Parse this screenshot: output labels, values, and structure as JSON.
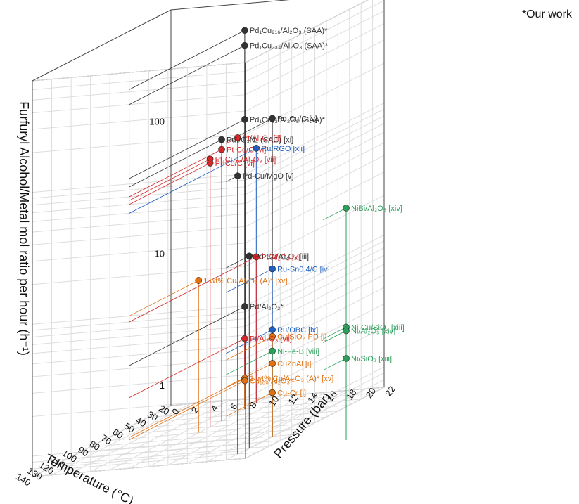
{
  "note": "*Our work",
  "chart_data": {
    "type": "scatter3d",
    "xlabel": "Temperature (°C)",
    "ylabel": "Pressure (bar)",
    "zlabel": "Furfuryl Alcohol/Metal mol ratio per hour (h⁻¹)",
    "zscale": "log",
    "xlim": [
      20,
      140
    ],
    "ylim": [
      0,
      22
    ],
    "zlim": [
      0.7,
      700
    ],
    "x_ticks": [
      "20",
      "30",
      "40",
      "50",
      "60",
      "70",
      "80",
      "90",
      "100",
      "110",
      "120",
      "130",
      "140"
    ],
    "y_ticks": [
      "0",
      "2",
      "4",
      "6",
      "8",
      "10",
      "12",
      "14",
      "16",
      "18",
      "20",
      "22"
    ],
    "z_ticks": [
      "1",
      "10",
      "100"
    ],
    "grid": true,
    "colors": {
      "ours": "#333333",
      "red": "#d62728",
      "blue": "#1f5fbf",
      "green": "#2ca05a",
      "orange": "#e07010"
    },
    "points": [
      {
        "label": "Pd₁Cu₂₁₆/Al₂O₃ (SAA)*",
        "color": "ours",
        "x": 40,
        "y": 10,
        "z": 520
      },
      {
        "label": "Pd₁Cu₂₃₄/Al₂O₃ (SAA)*",
        "color": "ours",
        "x": 40,
        "y": 10,
        "z": 400
      },
      {
        "label": "Pd-Cu/C [v]",
        "color": "ours",
        "x": 100,
        "y": 20,
        "z": 180
      },
      {
        "label": "Pt/Al₂O₃ [ii]",
        "color": "red",
        "x": 130,
        "y": 20,
        "z": 175
      },
      {
        "label": "Pd₁Cu₅₃/Al₂O₃ (SAA)*",
        "color": "ours",
        "x": 40,
        "y": 10,
        "z": 110
      },
      {
        "label": "Pd₁/C₃N₄ (SAC) [xi]",
        "color": "ours",
        "x": 60,
        "y": 10,
        "z": 95
      },
      {
        "label": "Pd-Cu/MgO [v]",
        "color": "ours",
        "x": 130,
        "y": 20,
        "z": 90
      },
      {
        "label": "Pt-Co/C [vi]",
        "color": "red",
        "x": 60,
        "y": 10,
        "z": 80
      },
      {
        "label": "Pt₁Cu₂₀/Al₂O₃ [vii]",
        "color": "red",
        "x": 70,
        "y": 10,
        "z": 75
      },
      {
        "label": "Pt-Co/C [vi]",
        "color": "red",
        "x": 70,
        "y": 10,
        "z": 70
      },
      {
        "label": "Ru/RGO [xii]",
        "color": "blue",
        "x": 30,
        "y": 10,
        "z": 60
      },
      {
        "label": "NiBi/Al₂O₃ [xiv]",
        "color": "green",
        "x": 120,
        "y": 30,
        "z": 40
      },
      {
        "label": "Pd-Cu/Al₂O₃ [iii]",
        "color": "ours",
        "x": 120,
        "y": 20,
        "z": 20
      },
      {
        "label": "Ru-Sn0.4/C [iv]",
        "color": "blue",
        "x": 100,
        "y": 20,
        "z": 13
      },
      {
        "label": "1 wt% Cu/Al₂O₃ (A)* [xv]",
        "color": "orange",
        "x": 80,
        "y": 10,
        "z": 10
      },
      {
        "label": "Pt/Al₂O₃ [x]",
        "color": "red",
        "x": 30,
        "y": 10,
        "z": 9
      },
      {
        "label": "Ni-Cu/SiO₂ [xiii]",
        "color": "green",
        "x": 120,
        "y": 30,
        "z": 5
      },
      {
        "label": "Ni/Al₂O₃ [xiv]",
        "color": "green",
        "x": 120,
        "y": 30,
        "z": 4.7
      },
      {
        "label": "Ru/OBC [ix]",
        "color": "blue",
        "x": 100,
        "y": 20,
        "z": 4.5
      },
      {
        "label": "Pd/Al₂O₃*",
        "color": "ours",
        "x": 40,
        "y": 10,
        "z": 4.2
      },
      {
        "label": "Cu/SiO₂-PD [i]",
        "color": "orange",
        "x": 100,
        "y": 20,
        "z": 4
      },
      {
        "label": "Ni-Fe-B [viii]",
        "color": "green",
        "x": 100,
        "y": 20,
        "z": 3.1
      },
      {
        "label": "Ni/SiO₂ [xiii]",
        "color": "green",
        "x": 120,
        "y": 30,
        "z": 2.9
      },
      {
        "label": "CuZnAl [i]",
        "color": "orange",
        "x": 100,
        "y": 20,
        "z": 2.5
      },
      {
        "label": "Pt/Al₂O₃ [vii]",
        "color": "red",
        "x": 40,
        "y": 10,
        "z": 2.4
      },
      {
        "label": "Cu-Cr [i]",
        "color": "orange",
        "x": 100,
        "y": 20,
        "z": 1.5
      },
      {
        "label": "1 wt% Cu/Al₂O₃ (A)* [xv]",
        "color": "orange",
        "x": 40,
        "y": 10,
        "z": 1.2
      },
      {
        "label": "Cu₁₀₀/Al₂O₃*",
        "color": "orange",
        "x": 40,
        "y": 10,
        "z": 1.15
      }
    ]
  }
}
